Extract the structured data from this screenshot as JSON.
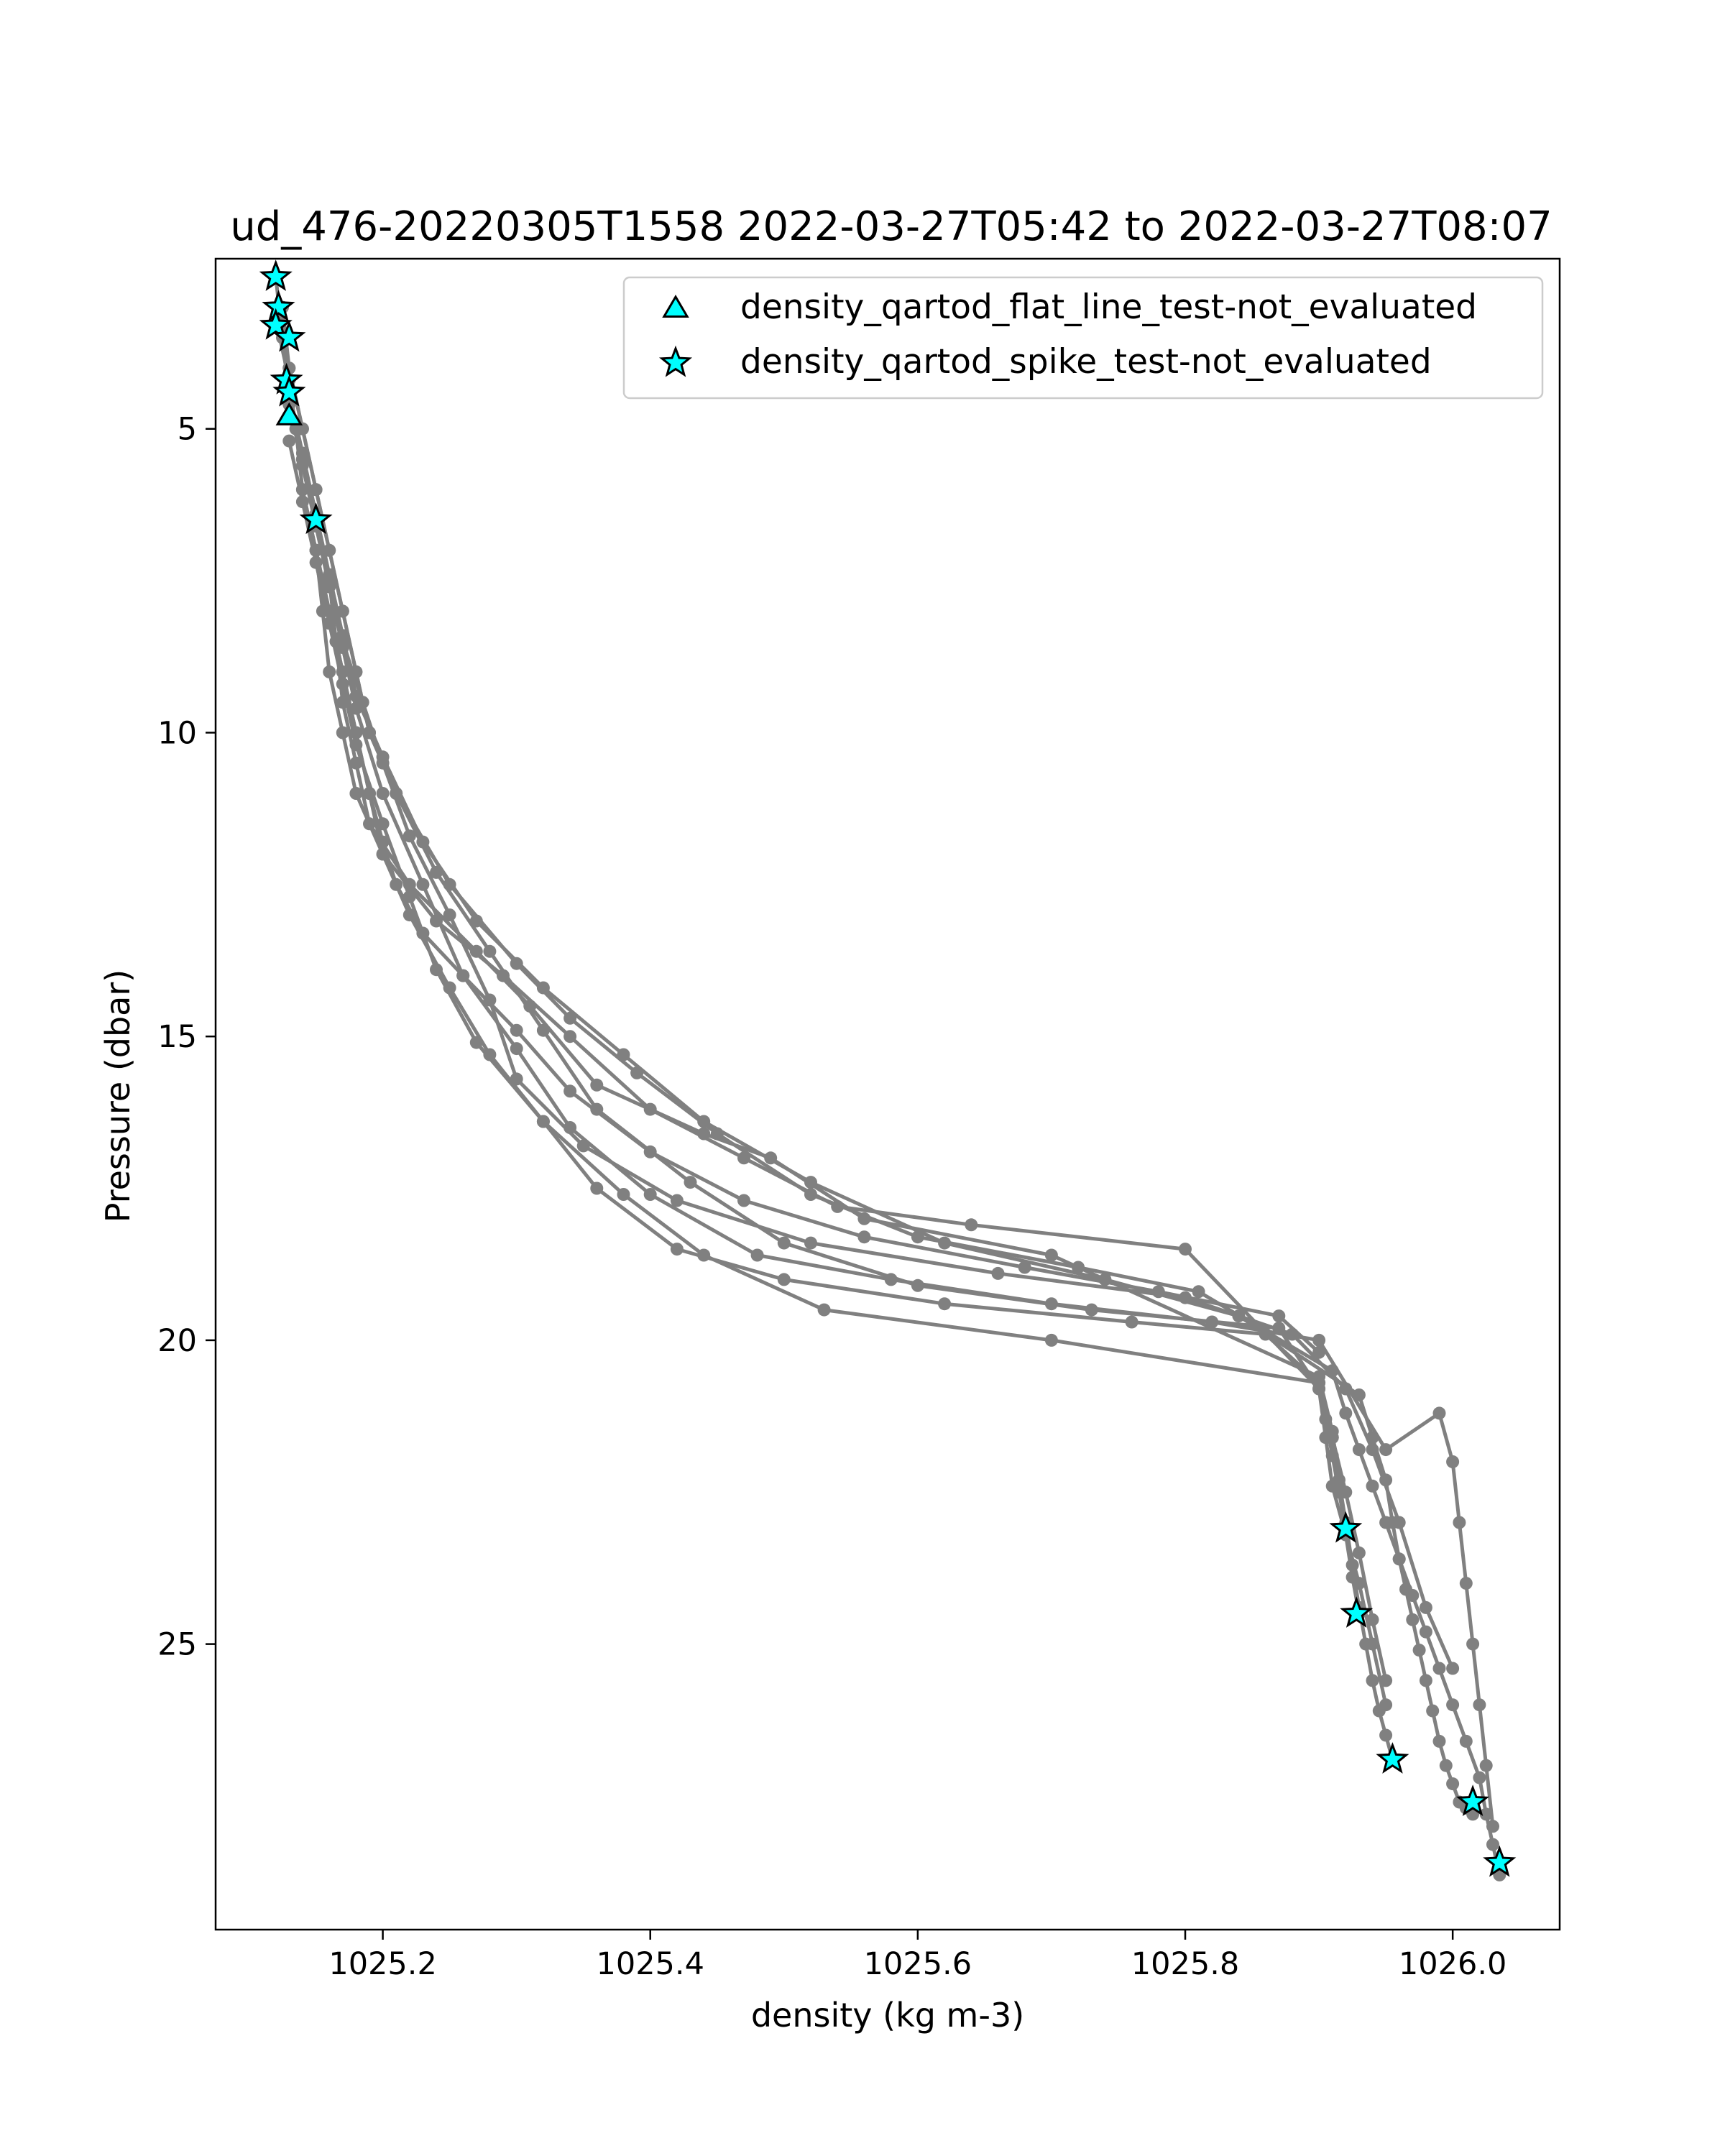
{
  "chart_data": {
    "type": "scatter",
    "title": "ud_476-20220305T1558 2022-03-27T05:42 to 2022-03-27T08:07",
    "xlabel": "density (kg m-3)",
    "ylabel": "Pressure (dbar)",
    "xlim": [
      1025.075,
      1026.08
    ],
    "ylim": [
      29.7,
      2.2
    ],
    "y_inverted": true,
    "xticks": [
      1025.2,
      1025.4,
      1025.6,
      1025.8,
      1026.0
    ],
    "xtick_labels": [
      "1025.2",
      "1025.4",
      "1025.6",
      "1025.8",
      "1026.0"
    ],
    "yticks": [
      5,
      10,
      15,
      20,
      25
    ],
    "ytick_labels": [
      "5",
      "10",
      "15",
      "20",
      "25"
    ],
    "grid": false,
    "legend_position": "top-right",
    "line_color": "#808080",
    "marker_color": "#00ffff",
    "series": [
      {
        "x": [
          1025.12,
          1025.125,
          1025.13,
          1025.14,
          1025.15,
          1025.16,
          1025.165,
          1025.17,
          1025.18,
          1025.19,
          1025.22,
          1025.27,
          1025.31,
          1025.36,
          1025.44,
          1025.49,
          1025.56,
          1025.7,
          1025.9,
          1025.91,
          1025.915,
          1025.92,
          1025.925,
          1025.93,
          1025.935,
          1025.94,
          1025.945,
          1025.95,
          1025.955
        ],
        "y": [
          2.5,
          3.5,
          4.5,
          5.5,
          6.5,
          7.5,
          8.5,
          9.5,
          10.5,
          11.5,
          12.5,
          13.6,
          14.5,
          15.8,
          16.6,
          17.0,
          18.0,
          18.6,
          20.6,
          21.5,
          22.3,
          23.0,
          23.7,
          24.4,
          25.0,
          25.6,
          26.1,
          26.5,
          26.9
        ]
      },
      {
        "x": [
          1025.12,
          1025.13,
          1025.135,
          1025.14,
          1025.15,
          1025.155,
          1025.16,
          1025.17,
          1025.18,
          1025.2,
          1025.24,
          1025.29,
          1025.34,
          1025.4,
          1025.47,
          1025.54,
          1025.64,
          1025.8,
          1025.9,
          1025.91,
          1025.915,
          1025.92,
          1025.925,
          1025.93
        ],
        "y": [
          3.2,
          4.2,
          5.0,
          6.0,
          7.0,
          8.0,
          9.0,
          10.0,
          11.0,
          12.0,
          13.1,
          14.0,
          15.0,
          16.2,
          17.0,
          17.8,
          18.1,
          18.5,
          20.8,
          21.6,
          22.4,
          23.2,
          23.9,
          24.5
        ]
      },
      {
        "x": [
          1025.125,
          1025.13,
          1025.14,
          1025.15,
          1025.16,
          1025.17,
          1025.18,
          1025.19,
          1025.21,
          1025.25,
          1025.3,
          1025.34,
          1025.39,
          1025.45,
          1025.52,
          1025.6,
          1025.72,
          1025.81,
          1025.91,
          1025.92,
          1025.93,
          1025.94,
          1025.95,
          1025.96,
          1025.965,
          1025.97,
          1025.975,
          1025.98,
          1025.985,
          1025.99,
          1025.995,
          1026.0,
          1026.005,
          1026.01,
          1026.015
        ],
        "y": [
          3.0,
          4.0,
          5.0,
          6.0,
          7.0,
          8.0,
          9.0,
          10.0,
          11.0,
          12.5,
          13.8,
          14.7,
          15.6,
          16.6,
          17.6,
          18.3,
          18.8,
          19.2,
          20.5,
          21.2,
          21.8,
          22.4,
          23.0,
          23.6,
          24.1,
          24.6,
          25.1,
          25.6,
          26.1,
          26.6,
          27.0,
          27.3,
          27.6,
          27.7,
          27.8
        ]
      },
      {
        "x": [
          1025.125,
          1025.13,
          1025.14,
          1025.15,
          1025.16,
          1025.17,
          1025.18,
          1025.2,
          1025.23,
          1025.27,
          1025.32,
          1025.38,
          1025.44,
          1025.52,
          1025.62,
          1025.74,
          1025.84,
          1025.93,
          1025.94,
          1025.95,
          1025.955,
          1025.96,
          1025.97,
          1025.98,
          1025.99,
          1026.0,
          1026.01,
          1026.02,
          1026.025,
          1026.03,
          1026.035
        ],
        "y": [
          3.4,
          4.4,
          5.4,
          6.4,
          7.4,
          8.4,
          9.4,
          10.4,
          11.8,
          13.1,
          14.2,
          15.3,
          16.4,
          17.4,
          18.4,
          19.0,
          19.6,
          20.9,
          21.6,
          22.3,
          23.0,
          23.6,
          24.2,
          24.8,
          25.4,
          26.0,
          26.6,
          27.2,
          27.8,
          28.3,
          28.8
        ]
      },
      {
        "x": [
          1025.13,
          1025.14,
          1025.15,
          1025.16,
          1025.17,
          1025.18,
          1025.19,
          1025.21,
          1025.24,
          1025.28,
          1025.32,
          1025.36,
          1025.43,
          1025.5,
          1025.6,
          1025.73,
          1025.87,
          1025.9,
          1025.905,
          1025.91,
          1025.92,
          1025.93,
          1025.94,
          1025.95
        ],
        "y": [
          4.0,
          5.0,
          6.0,
          7.0,
          8.0,
          9.0,
          10.0,
          11.0,
          12.3,
          13.6,
          14.9,
          16.2,
          17.4,
          18.4,
          19.1,
          19.5,
          19.8,
          20.8,
          21.6,
          22.4,
          23.2,
          24.0,
          25.0,
          26.0
        ]
      },
      {
        "x": [
          1025.14,
          1025.15,
          1025.16,
          1025.17,
          1025.185,
          1025.2,
          1025.22,
          1025.25,
          1025.28,
          1025.3,
          1025.35,
          1025.42,
          1025.52,
          1025.66,
          1025.8,
          1025.88,
          1025.92,
          1025.94,
          1025.96,
          1025.98,
          1026.0
        ],
        "y": [
          5.5,
          6.5,
          7.5,
          8.5,
          9.5,
          10.5,
          11.7,
          13.0,
          14.4,
          15.7,
          16.8,
          17.7,
          18.4,
          18.9,
          19.3,
          19.9,
          20.8,
          21.8,
          23.0,
          24.4,
          25.4
        ]
      },
      {
        "x": [
          1025.13,
          1025.14,
          1025.15,
          1025.16,
          1025.17,
          1025.18,
          1025.2,
          1025.23,
          1025.26,
          1025.3,
          1025.34,
          1025.4,
          1025.48,
          1025.58,
          1025.7,
          1025.82,
          1025.9,
          1025.95,
          1025.99,
          1026.0,
          1026.005,
          1026.01,
          1026.015,
          1026.02,
          1026.025,
          1026.03
        ],
        "y": [
          4.6,
          5.6,
          6.6,
          7.6,
          8.6,
          9.6,
          11.0,
          12.5,
          14.0,
          15.2,
          16.5,
          17.6,
          18.6,
          19.0,
          19.4,
          19.7,
          20.0,
          21.8,
          21.2,
          22.0,
          23.0,
          24.0,
          25.0,
          26.0,
          27.0,
          28.0
        ]
      },
      {
        "x": [
          1025.14,
          1025.15,
          1025.16,
          1025.17,
          1025.18,
          1025.19,
          1025.2,
          1025.21,
          1025.23,
          1025.26,
          1025.3,
          1025.34,
          1025.4,
          1025.47,
          1025.56,
          1025.68,
          1025.78,
          1025.87,
          1025.9
        ],
        "y": [
          6.0,
          7.0,
          8.0,
          9.0,
          10.0,
          11.0,
          11.8,
          12.5,
          13.3,
          14.0,
          14.9,
          15.9,
          16.9,
          17.7,
          18.3,
          18.8,
          19.2,
          19.6,
          20.2
        ]
      },
      {
        "x": [
          1025.15,
          1025.16,
          1025.17,
          1025.18,
          1025.19,
          1025.2,
          1025.22,
          1025.25,
          1025.28,
          1025.32,
          1025.36,
          1025.42,
          1025.5,
          1025.62,
          1025.76,
          1025.86,
          1025.9,
          1025.91,
          1025.92,
          1025.93,
          1025.94,
          1025.95
        ],
        "y": [
          7.0,
          8.0,
          9.0,
          10.0,
          11.0,
          12.0,
          13.0,
          14.2,
          15.3,
          16.4,
          17.5,
          18.5,
          19.0,
          19.4,
          19.7,
          19.9,
          20.7,
          21.6,
          22.5,
          23.5,
          24.6,
          25.6
        ]
      },
      {
        "x": [
          1025.13,
          1025.14,
          1025.15,
          1025.16,
          1025.17,
          1025.18,
          1025.2,
          1025.22,
          1025.24,
          1025.27,
          1025.32,
          1025.38,
          1025.44,
          1025.53,
          1025.7,
          1025.9,
          1025.905,
          1025.91,
          1025.915,
          1025.92
        ],
        "y": [
          5.2,
          6.2,
          7.2,
          8.2,
          9.2,
          10.2,
          11.5,
          12.7,
          13.9,
          15.1,
          16.4,
          17.6,
          18.6,
          19.5,
          20.0,
          20.7,
          21.3,
          21.9,
          22.5,
          23.1
        ]
      }
    ],
    "markers": [
      {
        "series": "density_qartod_flat_line_test-not_evaluated",
        "x": 1025.13,
        "y": 4.8
      },
      {
        "series": "density_qartod_spike_test-not_evaluated",
        "x": 1025.12,
        "y": 2.5
      },
      {
        "series": "density_qartod_spike_test-not_evaluated",
        "x": 1025.122,
        "y": 3.0
      },
      {
        "series": "density_qartod_spike_test-not_evaluated",
        "x": 1025.12,
        "y": 3.3
      },
      {
        "series": "density_qartod_spike_test-not_evaluated",
        "x": 1025.13,
        "y": 3.5
      },
      {
        "series": "density_qartod_spike_test-not_evaluated",
        "x": 1025.128,
        "y": 4.2
      },
      {
        "series": "density_qartod_spike_test-not_evaluated",
        "x": 1025.13,
        "y": 4.4
      },
      {
        "series": "density_qartod_spike_test-not_evaluated",
        "x": 1025.15,
        "y": 6.5
      },
      {
        "series": "density_qartod_spike_test-not_evaluated",
        "x": 1025.92,
        "y": 23.1
      },
      {
        "series": "density_qartod_spike_test-not_evaluated",
        "x": 1025.928,
        "y": 24.5
      },
      {
        "series": "density_qartod_spike_test-not_evaluated",
        "x": 1025.955,
        "y": 26.9
      },
      {
        "series": "density_qartod_spike_test-not_evaluated",
        "x": 1026.015,
        "y": 27.6
      },
      {
        "series": "density_qartod_spike_test-not_evaluated",
        "x": 1026.035,
        "y": 28.6
      }
    ],
    "legend": [
      {
        "label": "density_qartod_flat_line_test-not_evaluated",
        "marker": "triangle"
      },
      {
        "label": "density_qartod_spike_test-not_evaluated",
        "marker": "star"
      }
    ]
  }
}
